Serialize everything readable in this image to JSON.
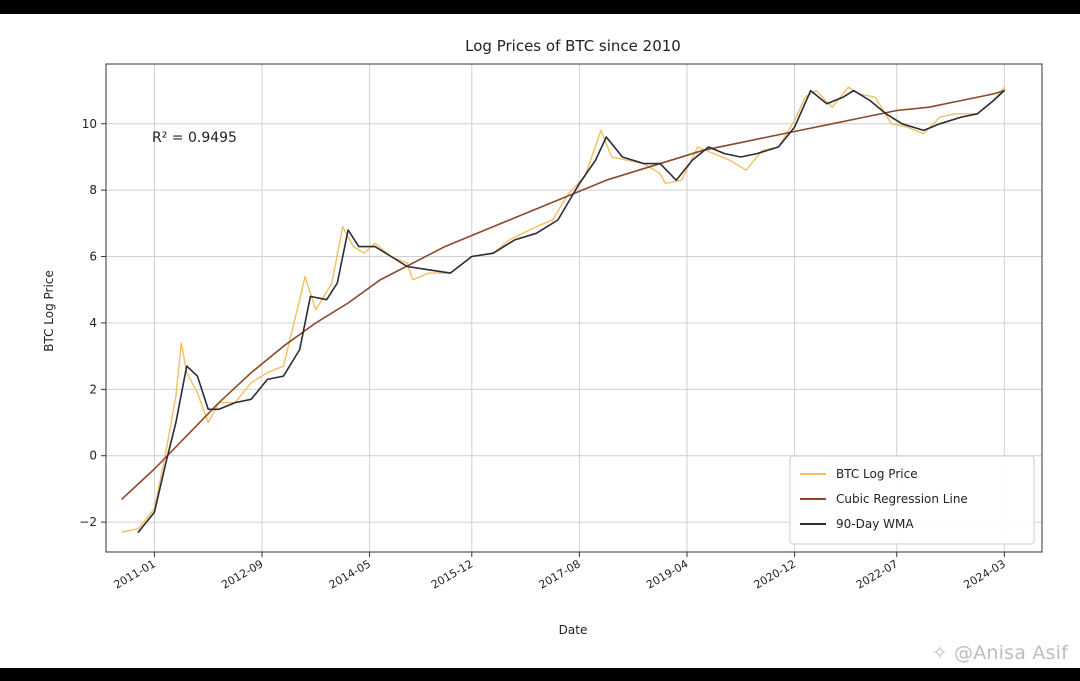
{
  "chart_data": {
    "type": "line",
    "title": "Log Prices of BTC since 2010",
    "xlabel": "Date",
    "ylabel": "BTC Log Price",
    "annotation": "R² = 0.9495",
    "x_ticks": [
      "2011-01",
      "2012-09",
      "2014-05",
      "2015-12",
      "2017-08",
      "2019-04",
      "2020-12",
      "2022-07",
      "2024-03"
    ],
    "y_ticks": [
      -2,
      0,
      2,
      4,
      6,
      8,
      10
    ],
    "xlim": [
      "2010-04",
      "2024-10"
    ],
    "ylim": [
      -2.9,
      11.8
    ],
    "grid": true,
    "legend_position": "bottom-right",
    "series": [
      {
        "name": "BTC Log Price",
        "color": "#f2c060",
        "points": [
          [
            "2010-07",
            -2.3
          ],
          [
            "2010-10",
            -2.2
          ],
          [
            "2011-01",
            -1.6
          ],
          [
            "2011-03",
            0.0
          ],
          [
            "2011-05",
            1.8
          ],
          [
            "2011-06",
            3.4
          ],
          [
            "2011-07",
            2.5
          ],
          [
            "2011-09",
            1.9
          ],
          [
            "2011-11",
            1.0
          ],
          [
            "2012-01",
            1.6
          ],
          [
            "2012-04",
            1.6
          ],
          [
            "2012-07",
            2.2
          ],
          [
            "2012-10",
            2.5
          ],
          [
            "2013-01",
            2.7
          ],
          [
            "2013-04",
            4.7
          ],
          [
            "2013-05",
            5.4
          ],
          [
            "2013-07",
            4.4
          ],
          [
            "2013-10",
            5.2
          ],
          [
            "2013-12",
            6.9
          ],
          [
            "2014-02",
            6.3
          ],
          [
            "2014-04",
            6.1
          ],
          [
            "2014-06",
            6.4
          ],
          [
            "2014-09",
            6.0
          ],
          [
            "2014-12",
            5.8
          ],
          [
            "2015-01",
            5.3
          ],
          [
            "2015-04",
            5.5
          ],
          [
            "2015-08",
            5.5
          ],
          [
            "2015-12",
            6.0
          ],
          [
            "2016-04",
            6.1
          ],
          [
            "2016-07",
            6.5
          ],
          [
            "2016-12",
            6.9
          ],
          [
            "2017-03",
            7.1
          ],
          [
            "2017-06",
            7.9
          ],
          [
            "2017-09",
            8.4
          ],
          [
            "2017-12",
            9.8
          ],
          [
            "2018-02",
            9.0
          ],
          [
            "2018-05",
            8.9
          ],
          [
            "2018-08",
            8.8
          ],
          [
            "2018-11",
            8.5
          ],
          [
            "2018-12",
            8.2
          ],
          [
            "2019-03",
            8.3
          ],
          [
            "2019-06",
            9.3
          ],
          [
            "2019-09",
            9.1
          ],
          [
            "2019-12",
            8.9
          ],
          [
            "2020-03",
            8.6
          ],
          [
            "2020-06",
            9.2
          ],
          [
            "2020-09",
            9.3
          ],
          [
            "2020-12",
            10.1
          ],
          [
            "2021-02",
            10.8
          ],
          [
            "2021-04",
            11.0
          ],
          [
            "2021-07",
            10.5
          ],
          [
            "2021-10",
            11.1
          ],
          [
            "2021-12",
            10.9
          ],
          [
            "2022-03",
            10.8
          ],
          [
            "2022-06",
            10.0
          ],
          [
            "2022-09",
            9.9
          ],
          [
            "2022-12",
            9.7
          ],
          [
            "2023-03",
            10.2
          ],
          [
            "2023-06",
            10.3
          ],
          [
            "2023-10",
            10.3
          ],
          [
            "2024-01",
            10.7
          ],
          [
            "2024-03",
            11.1
          ]
        ]
      },
      {
        "name": "Cubic Regression Line",
        "color": "#8b4a2b",
        "points": [
          [
            "2010-07",
            -1.3
          ],
          [
            "2011-01",
            -0.4
          ],
          [
            "2011-07",
            0.6
          ],
          [
            "2012-01",
            1.6
          ],
          [
            "2012-07",
            2.5
          ],
          [
            "2013-01",
            3.3
          ],
          [
            "2013-07",
            4.0
          ],
          [
            "2014-01",
            4.6
          ],
          [
            "2014-07",
            5.3
          ],
          [
            "2015-01",
            5.8
          ],
          [
            "2015-07",
            6.3
          ],
          [
            "2016-01",
            6.7
          ],
          [
            "2016-07",
            7.1
          ],
          [
            "2017-01",
            7.5
          ],
          [
            "2017-07",
            7.9
          ],
          [
            "2018-01",
            8.3
          ],
          [
            "2018-07",
            8.6
          ],
          [
            "2019-01",
            8.9
          ],
          [
            "2019-07",
            9.2
          ],
          [
            "2020-01",
            9.4
          ],
          [
            "2020-07",
            9.6
          ],
          [
            "2021-01",
            9.8
          ],
          [
            "2021-07",
            10.0
          ],
          [
            "2022-01",
            10.2
          ],
          [
            "2022-07",
            10.4
          ],
          [
            "2023-01",
            10.5
          ],
          [
            "2023-07",
            10.7
          ],
          [
            "2024-01",
            10.9
          ],
          [
            "2024-03",
            11.0
          ]
        ]
      },
      {
        "name": "90-Day WMA",
        "color": "#2b2b3a",
        "points": [
          [
            "2010-10",
            -2.3
          ],
          [
            "2011-01",
            -1.7
          ],
          [
            "2011-03",
            -0.3
          ],
          [
            "2011-05",
            1.0
          ],
          [
            "2011-07",
            2.7
          ],
          [
            "2011-09",
            2.4
          ],
          [
            "2011-11",
            1.4
          ],
          [
            "2012-01",
            1.4
          ],
          [
            "2012-04",
            1.6
          ],
          [
            "2012-07",
            1.7
          ],
          [
            "2012-10",
            2.3
          ],
          [
            "2013-01",
            2.4
          ],
          [
            "2013-04",
            3.2
          ],
          [
            "2013-06",
            4.8
          ],
          [
            "2013-09",
            4.7
          ],
          [
            "2013-11",
            5.2
          ],
          [
            "2014-01",
            6.8
          ],
          [
            "2014-03",
            6.3
          ],
          [
            "2014-06",
            6.3
          ],
          [
            "2014-09",
            6.0
          ],
          [
            "2014-12",
            5.7
          ],
          [
            "2015-04",
            5.6
          ],
          [
            "2015-08",
            5.5
          ],
          [
            "2015-12",
            6.0
          ],
          [
            "2016-04",
            6.1
          ],
          [
            "2016-08",
            6.5
          ],
          [
            "2016-12",
            6.7
          ],
          [
            "2017-04",
            7.1
          ],
          [
            "2017-08",
            8.2
          ],
          [
            "2017-11",
            8.9
          ],
          [
            "2018-01",
            9.6
          ],
          [
            "2018-04",
            9.0
          ],
          [
            "2018-08",
            8.8
          ],
          [
            "2018-11",
            8.8
          ],
          [
            "2019-02",
            8.3
          ],
          [
            "2019-05",
            8.9
          ],
          [
            "2019-08",
            9.3
          ],
          [
            "2019-11",
            9.1
          ],
          [
            "2020-02",
            9.0
          ],
          [
            "2020-05",
            9.1
          ],
          [
            "2020-09",
            9.3
          ],
          [
            "2020-12",
            9.9
          ],
          [
            "2021-03",
            11.0
          ],
          [
            "2021-06",
            10.6
          ],
          [
            "2021-09",
            10.8
          ],
          [
            "2021-11",
            11.0
          ],
          [
            "2022-02",
            10.7
          ],
          [
            "2022-05",
            10.3
          ],
          [
            "2022-08",
            10.0
          ],
          [
            "2022-12",
            9.8
          ],
          [
            "2023-03",
            10.0
          ],
          [
            "2023-07",
            10.2
          ],
          [
            "2023-10",
            10.3
          ],
          [
            "2024-01",
            10.7
          ],
          [
            "2024-03",
            11.0
          ]
        ]
      }
    ]
  },
  "watermark": {
    "icon": "sparkle-icon",
    "text": "@Anisa Asif"
  }
}
